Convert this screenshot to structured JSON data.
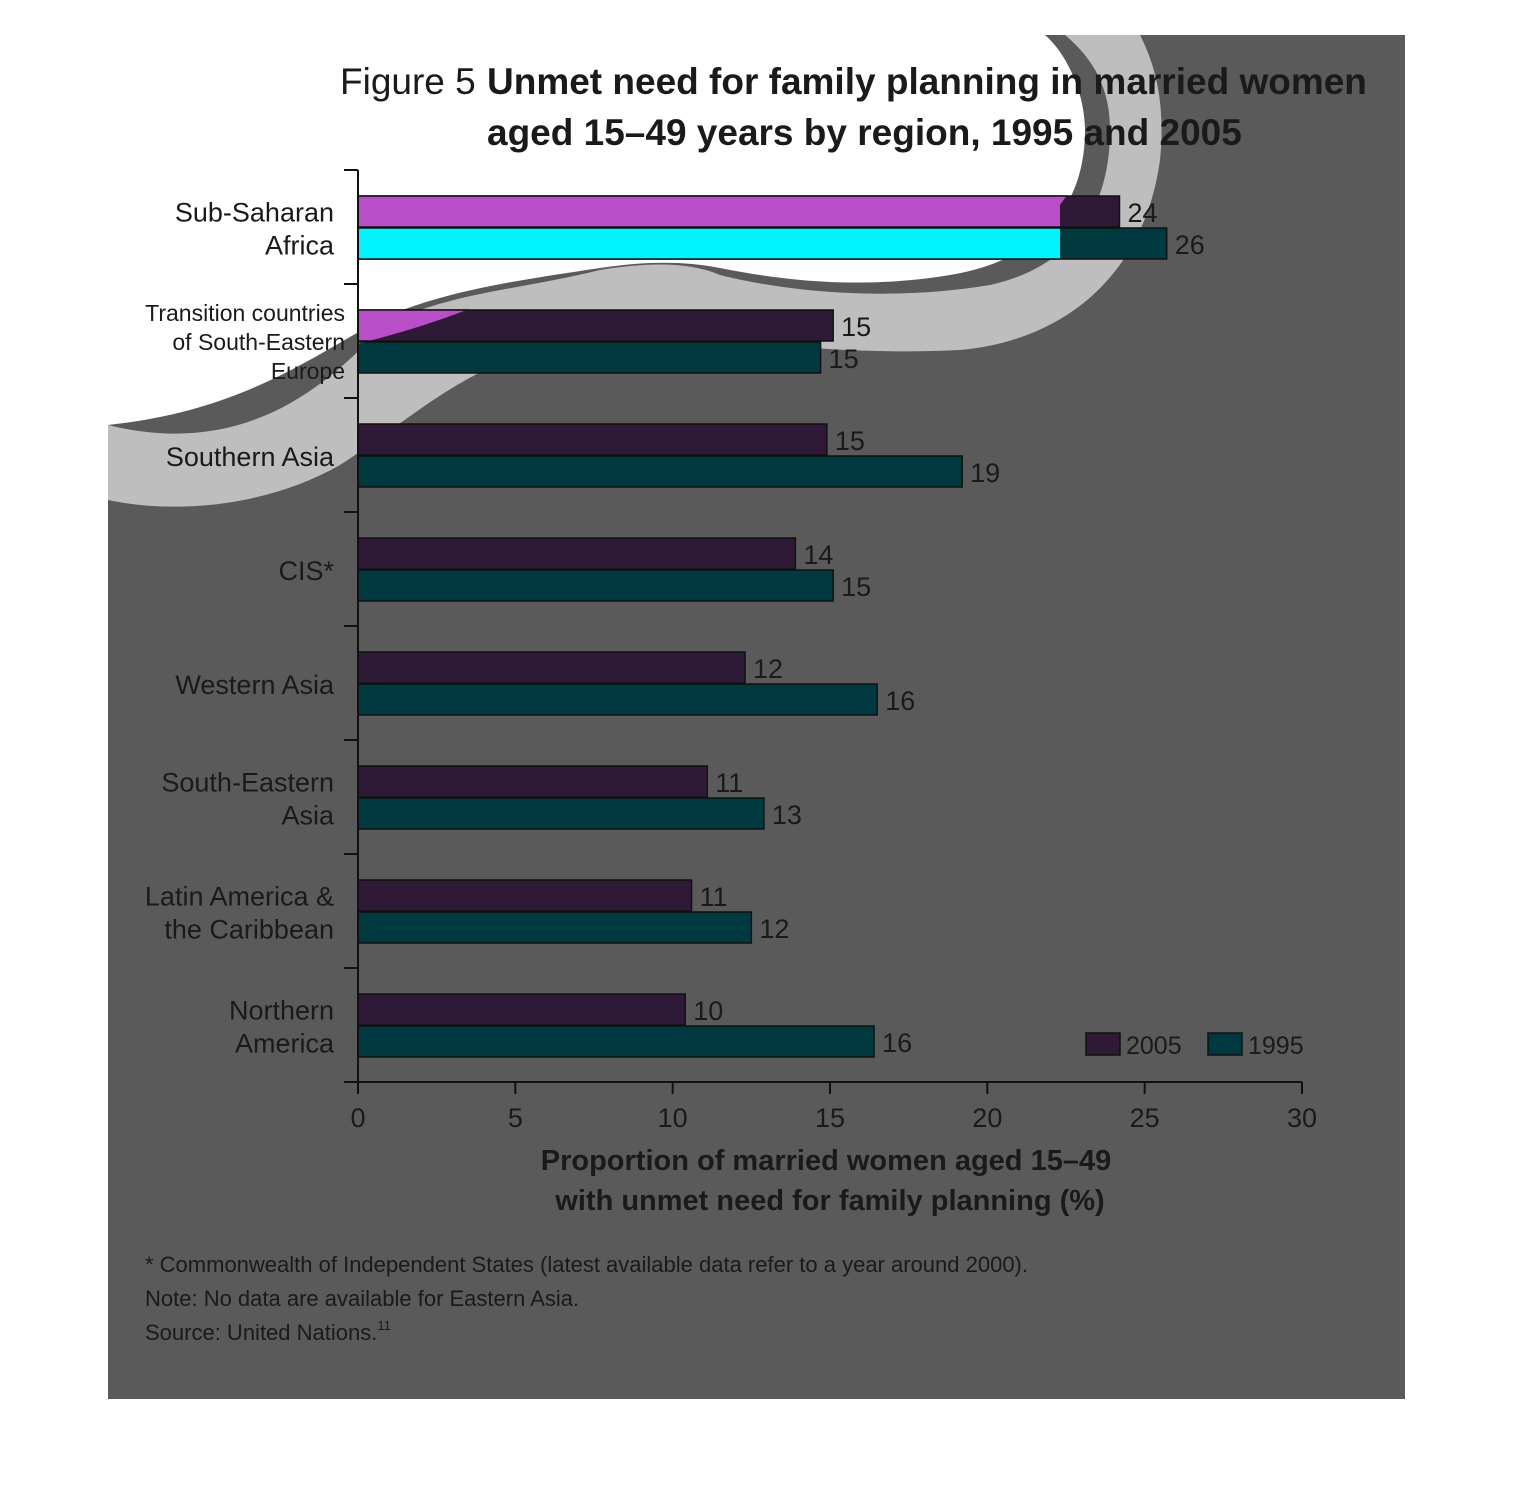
{
  "figure": {
    "prefix": "Figure 5",
    "title_lines": [
      "Unmet need for family planning in married women",
      "aged 15–49 years by region, 1995 and 2005"
    ]
  },
  "chart_data": {
    "type": "bar",
    "orientation": "horizontal",
    "categories": [
      [
        "Sub-Saharan",
        "Africa"
      ],
      [
        "Transition countries",
        "of South-Eastern",
        "Europe"
      ],
      [
        "Southern Asia"
      ],
      [
        "CIS*"
      ],
      [
        "Western Asia"
      ],
      [
        "South-Eastern",
        "Asia"
      ],
      [
        "Latin America &",
        "the Caribbean"
      ],
      [
        "Northern",
        "America"
      ]
    ],
    "series": [
      {
        "name": "2005",
        "color": "#2e1a36",
        "values": [
          24.2,
          15.1,
          14.9,
          13.9,
          12.3,
          11.1,
          10.6,
          10.4
        ],
        "labels": [
          "24",
          "15",
          "15",
          "14",
          "12",
          "11",
          "11",
          "10"
        ]
      },
      {
        "name": "1995",
        "color": "#003a40",
        "values": [
          25.7,
          14.7,
          19.2,
          15.1,
          16.5,
          12.9,
          12.5,
          16.4
        ],
        "labels": [
          "26",
          "15",
          "19",
          "15",
          "16",
          "13",
          "12",
          "16"
        ]
      }
    ],
    "highlight_colors": {
      "2005": "#b84fc8",
      "1995": "#00f4ff"
    },
    "xlim": [
      0,
      30
    ],
    "xticks": [
      "0",
      "5",
      "10",
      "15",
      "20",
      "25",
      "30"
    ],
    "xlabel_lines": [
      "Proportion of married women aged 15–49",
      "with unmet need for family planning (%)"
    ],
    "grid": false,
    "legend_position": "bottom-right"
  },
  "notes": [
    "* Commonwealth of Independent States (latest available data refer to a year around 2000).",
    "Note: No data are available for Eastern Asia.",
    "Source: United Nations."
  ],
  "source_superscript": "11",
  "colors": {
    "panel": "#5a5a5a",
    "swirl": "#bebebe",
    "text": "#1a1a1a"
  }
}
